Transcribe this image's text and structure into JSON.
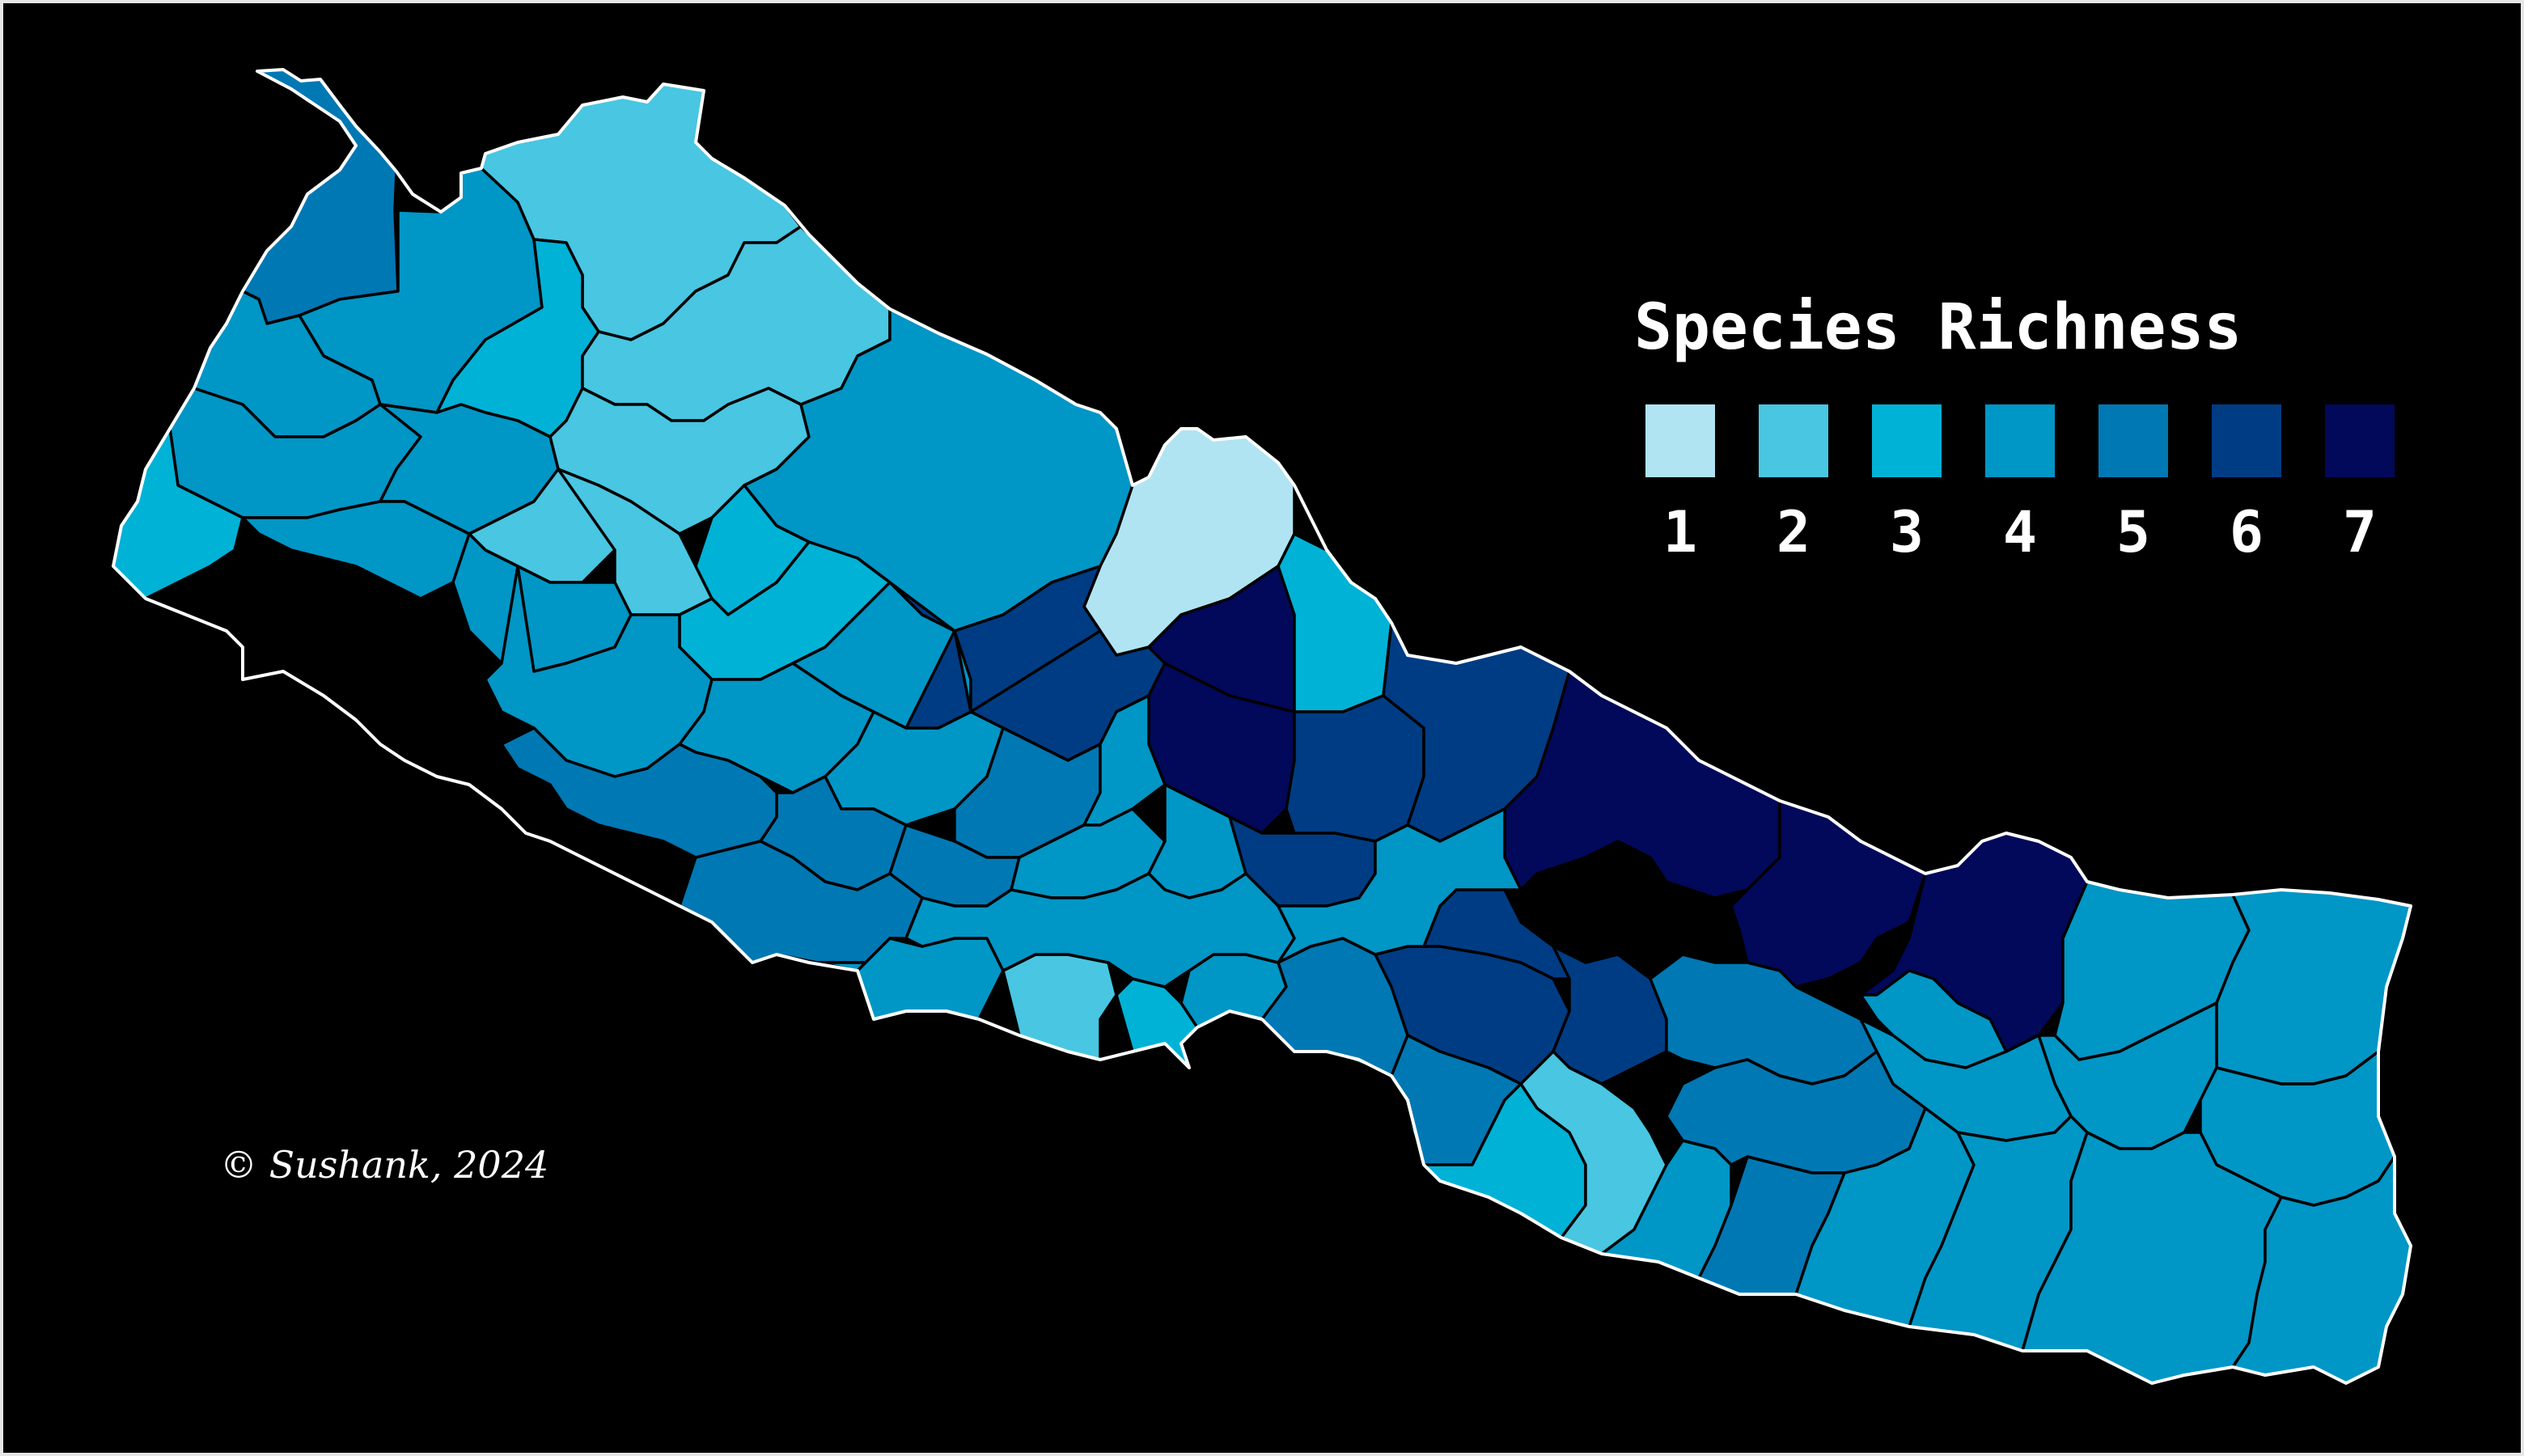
{
  "legend": {
    "title": "Species Richness",
    "classes": [
      {
        "label": "1",
        "color": "#b0e4f2"
      },
      {
        "label": "2",
        "color": "#48c6e2"
      },
      {
        "label": "3",
        "color": "#00b2d6"
      },
      {
        "label": "4",
        "color": "#0096c6"
      },
      {
        "label": "5",
        "color": "#0078b4"
      },
      {
        "label": "6",
        "color": "#003c84"
      },
      {
        "label": "7",
        "color": "#02085a"
      }
    ]
  },
  "credit": "© Sushank, 2024",
  "colors": {
    "background": "#000000",
    "district_border": "#000000",
    "country_outline": "#ffffff",
    "frame": "#e6e6e6"
  },
  "map": {
    "districts": [
      {
        "richness": 5
      },
      {
        "richness": 4
      },
      {
        "richness": 2
      },
      {
        "richness": 3
      },
      {
        "richness": 2
      },
      {
        "richness": 2
      },
      {
        "richness": 4
      },
      {
        "richness": 4
      },
      {
        "richness": 4
      },
      {
        "richness": 4
      },
      {
        "richness": 3
      },
      {
        "richness": 4
      },
      {
        "richness": 2
      },
      {
        "richness": 2
      },
      {
        "richness": 4
      },
      {
        "richness": 1
      },
      {
        "richness": 3
      },
      {
        "richness": 6
      },
      {
        "richness": 7
      },
      {
        "richness": 6
      },
      {
        "richness": 6
      },
      {
        "richness": 3
      },
      {
        "richness": 3
      },
      {
        "richness": 4
      },
      {
        "richness": 4
      },
      {
        "richness": 4
      },
      {
        "richness": 4
      },
      {
        "richness": 5
      },
      {
        "richness": 5
      },
      {
        "richness": 4
      },
      {
        "richness": 5
      },
      {
        "richness": 4
      },
      {
        "richness": 4
      },
      {
        "richness": 5
      },
      {
        "richness": 5
      },
      {
        "richness": 6
      },
      {
        "richness": 6
      },
      {
        "richness": 7
      },
      {
        "richness": 6
      },
      {
        "richness": 7
      },
      {
        "richness": 7
      },
      {
        "richness": 7
      },
      {
        "richness": 1
      },
      {
        "richness": 2
      },
      {
        "richness": 3
      },
      {
        "richness": 4
      },
      {
        "richness": 5
      },
      {
        "richness": 6
      },
      {
        "richness": 6
      },
      {
        "richness": 6
      },
      {
        "richness": 5
      },
      {
        "richness": 5
      },
      {
        "richness": 4
      },
      {
        "richness": 4
      },
      {
        "richness": 4
      },
      {
        "richness": 4
      },
      {
        "richness": 4
      },
      {
        "richness": 4
      },
      {
        "richness": 3
      },
      {
        "richness": 2
      },
      {
        "richness": 4
      },
      {
        "richness": 5
      },
      {
        "richness": 5
      },
      {
        "richness": 4
      },
      {
        "richness": 4
      },
      {
        "richness": 4
      },
      {
        "richness": 4
      },
      {
        "richness": 4
      },
      {
        "richness": 4
      },
      {
        "richness": 4
      },
      {
        "richness": 4
      },
      {
        "richness": 4
      }
    ]
  }
}
